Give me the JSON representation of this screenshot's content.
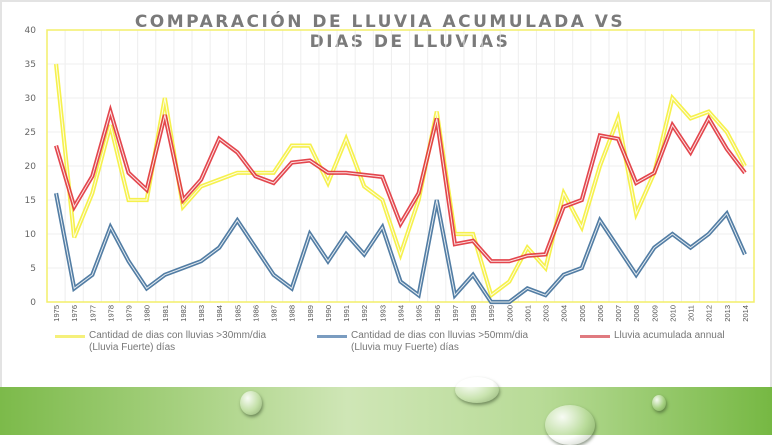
{
  "chart_data": {
    "type": "line",
    "title": "COMPARACIÓN DE LLUVIA ACUMULADA VS DIAS DE LLUVIAS",
    "title_lines": [
      "COMPARACIÓN DE LLUVIA ACUMULADA VS",
      "DIAS DE LLUVIAS"
    ],
    "xlabel": "",
    "ylabel": "",
    "ylim": [
      0,
      40
    ],
    "yticks": [
      "0",
      "5",
      "10",
      "15",
      "20",
      "25",
      "30",
      "35",
      "40"
    ],
    "grid": true,
    "legend_position": "bottom",
    "categories": [
      "1975",
      "1976",
      "1977",
      "1978",
      "1979",
      "1980",
      "1981",
      "1982",
      "1983",
      "1984",
      "1985",
      "1986",
      "1987",
      "1988",
      "1989",
      "1990",
      "1991",
      "1992",
      "1993",
      "1994",
      "1995",
      "1996",
      "1997",
      "1998",
      "1999",
      "2000",
      "2001",
      "2003",
      "2004",
      "2005",
      "2006",
      "2007",
      "2008",
      "2009",
      "2010",
      "2011",
      "2012",
      "2013",
      "2014"
    ],
    "series": [
      {
        "name": "Cantidad de dias con lluvias >30mm/dia (Lluvia Fuerte) días",
        "legend_lines": [
          "Cantidad de dias con lluvias >30mm/dia",
          "(Lluvia Fuerte) días"
        ],
        "color": "#f5f03a",
        "values": [
          35,
          9.5,
          16,
          26,
          15,
          15,
          30,
          14,
          17,
          18,
          19,
          19,
          19,
          23,
          23,
          17.5,
          24,
          17,
          15,
          7,
          15,
          28,
          10,
          10,
          1,
          3,
          8,
          5,
          16,
          11,
          20,
          27,
          13,
          19,
          30,
          27,
          28,
          25,
          20
        ]
      },
      {
        "name": "Cantidad de dias con lluvias >50mm/dia (Lluvia muy  Fuerte) días",
        "legend_lines": [
          "Cantidad de dias con lluvias >50mm/dia",
          "(Lluvia muy  Fuerte) días"
        ],
        "color": "#3f6f9a",
        "values": [
          16,
          2,
          4,
          11,
          6,
          2,
          4,
          5,
          6,
          8,
          12,
          8,
          4,
          2,
          10,
          6,
          10,
          7,
          11,
          3,
          1,
          15,
          1,
          4,
          0,
          0,
          2,
          1,
          4,
          5,
          12,
          8,
          4,
          8,
          10,
          8,
          10,
          13,
          7
        ]
      },
      {
        "name": "Lluvia acumulada annual",
        "legend_lines": [
          "Lluvia acumulada annual"
        ],
        "color": "#e0323a",
        "values": [
          23,
          14,
          18.5,
          28,
          19,
          16.5,
          27.5,
          15,
          18,
          24,
          22,
          18.5,
          17.5,
          20.5,
          20.8,
          19,
          19,
          18.7,
          18.4,
          11.5,
          16,
          27,
          8.5,
          9,
          6,
          6,
          6.8,
          7,
          14,
          15,
          24.5,
          24,
          17.5,
          19,
          26,
          22,
          27,
          22.5,
          19
        ]
      }
    ]
  }
}
